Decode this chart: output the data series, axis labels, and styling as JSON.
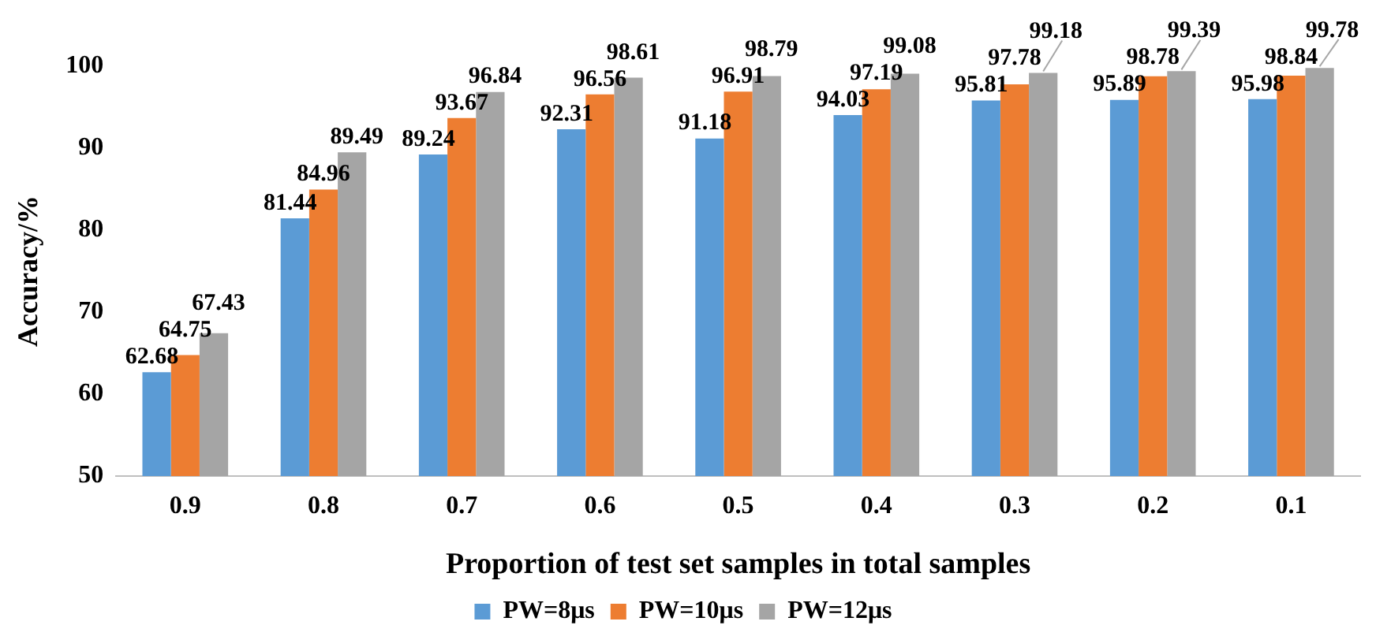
{
  "chart_data": {
    "type": "bar",
    "xlabel": "Proportion of test set samples in total samples",
    "ylabel": "Accuracy/%",
    "categories": [
      "0.9",
      "0.8",
      "0.7",
      "0.6",
      "0.5",
      "0.4",
      "0.3",
      "0.2",
      "0.1"
    ],
    "series": [
      {
        "name": "PW=8μs",
        "color": "#5b9bd5",
        "values": [
          62.68,
          81.44,
          89.24,
          92.31,
          91.18,
          94.03,
          95.81,
          95.89,
          95.98
        ]
      },
      {
        "name": "PW=10μs",
        "color": "#ed7d31",
        "values": [
          64.75,
          84.96,
          93.67,
          96.56,
          96.91,
          97.19,
          97.78,
          98.78,
          98.84
        ]
      },
      {
        "name": "PW=12μs",
        "color": "#a5a5a5",
        "values": [
          67.43,
          89.49,
          96.84,
          98.61,
          98.79,
          99.08,
          99.18,
          99.39,
          99.78
        ]
      }
    ],
    "ylim": [
      50,
      100
    ],
    "yticks": [
      50,
      60,
      70,
      80,
      90,
      100
    ],
    "grid": false,
    "legend": "bottom",
    "data_labels": true
  }
}
